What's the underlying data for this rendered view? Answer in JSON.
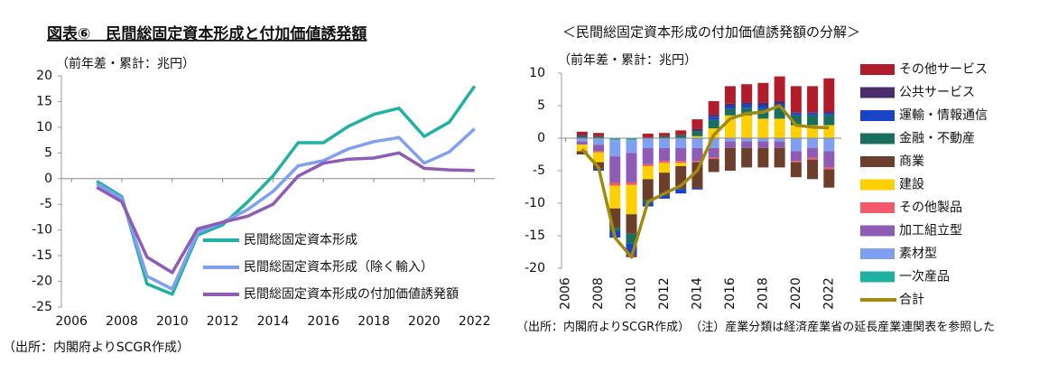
{
  "chart_data": [
    {
      "type": "line",
      "title": "図表⑥　民間総固定資本形成と付加価値誘発額",
      "subtitle": "（前年差・累計：兆円）",
      "source": "（出所：内閣府よりSCGR作成）",
      "x": [
        2007,
        2008,
        2009,
        2010,
        2011,
        2012,
        2013,
        2014,
        2015,
        2016,
        2017,
        2018,
        2019,
        2020,
        2021,
        2022
      ],
      "xlim": [
        2005.6,
        2022.8
      ],
      "xticks": [
        2006,
        2008,
        2010,
        2012,
        2014,
        2016,
        2018,
        2020,
        2022
      ],
      "ylim": [
        -25,
        20
      ],
      "yticks": [
        -25,
        -20,
        -15,
        -10,
        -5,
        0,
        5,
        10,
        15,
        20
      ],
      "series": [
        {
          "name": "民間総固定資本形成",
          "color": "#20b2a0",
          "values": [
            -0.5,
            -3.5,
            -20.5,
            -22.5,
            -11,
            -9,
            -4.5,
            0.5,
            7,
            7,
            10.2,
            12.5,
            13.7,
            8.2,
            11,
            18
          ]
        },
        {
          "name": "民間総固定資本形成（除く輸入）",
          "color": "#7fa0f0",
          "values": [
            -1,
            -3.8,
            -19,
            -21.5,
            -10.5,
            -8.5,
            -6,
            -2.5,
            2.5,
            3.5,
            5.8,
            7.2,
            8,
            3,
            5.2,
            9.7
          ]
        },
        {
          "name": "民間総固定資本形成の付加価値誘発額",
          "color": "#8e5bb5",
          "values": [
            -1.7,
            -4.5,
            -15.3,
            -18.3,
            -9.8,
            -8.5,
            -7.3,
            -5,
            0.5,
            3,
            3.8,
            4,
            5,
            2,
            1.7,
            1.6
          ]
        }
      ]
    },
    {
      "type": "stacked-bar",
      "title": "＜民間総固定資本形成の付加価値誘発額の分解＞",
      "subtitle": "（前年差・累計：兆円）",
      "source": "（出所：内閣府よりSCGR作成）",
      "note": "（注）産業分類は経済産業省の延長産業連関表を参照した",
      "x": [
        2007,
        2008,
        2009,
        2010,
        2011,
        2012,
        2013,
        2014,
        2015,
        2016,
        2017,
        2018,
        2019,
        2020,
        2021,
        2022
      ],
      "xlim": [
        2005.75,
        2022.75
      ],
      "xticks": [
        2006,
        2008,
        2010,
        2012,
        2014,
        2016,
        2018,
        2020,
        2022
      ],
      "ylim": [
        -20,
        10
      ],
      "yticks": [
        -20,
        -15,
        -10,
        -5,
        0,
        5,
        10
      ],
      "series": [
        {
          "name": "一次産品",
          "color": "#20b2a0",
          "values": [
            0,
            0,
            -0.3,
            -0.3,
            0,
            0,
            0,
            0,
            0,
            0,
            0,
            0,
            0,
            0,
            0,
            0
          ]
        },
        {
          "name": "素材型",
          "color": "#7fa0f0",
          "values": [
            -0.5,
            -1,
            -2.5,
            -2,
            -1.5,
            -1.5,
            -1.5,
            -1.5,
            -1.5,
            -0.5,
            -0.5,
            -0.5,
            -0.5,
            -2,
            -1.5,
            -2
          ]
        },
        {
          "name": "加工組立型",
          "color": "#8e5bb5",
          "values": [
            -0.5,
            -1,
            -4,
            -4.5,
            -2.5,
            -2,
            -2,
            -2,
            -1.5,
            -1,
            -1,
            -1,
            -1,
            -1.5,
            -1.5,
            -2.5
          ]
        },
        {
          "name": "その他製品",
          "color": "#f05a6a",
          "values": [
            0,
            -0.2,
            -0.5,
            -0.4,
            -0.3,
            -0.3,
            -0.3,
            -0.2,
            -0.2,
            0,
            0,
            0,
            0,
            -0.2,
            -0.3,
            -0.3
          ]
        },
        {
          "name": "建設",
          "color": "#ffd000",
          "values": [
            -1,
            -1.5,
            -3.5,
            -4.5,
            -2,
            -1.5,
            -0.5,
            0.3,
            1.5,
            3.5,
            3.5,
            3,
            3,
            2,
            2,
            2
          ]
        },
        {
          "name": "商業",
          "color": "#6b3f2a",
          "values": [
            -0.5,
            -1,
            -3,
            -3,
            -3.2,
            -3.5,
            -3.5,
            -4,
            -2,
            -3.5,
            -3,
            -3,
            -3,
            -2.3,
            -3,
            -2.8
          ]
        },
        {
          "name": "金融・不動産",
          "color": "#1a6e5e",
          "values": [
            0.3,
            0.3,
            -0.5,
            -1.5,
            -0.5,
            0.3,
            0.5,
            0.8,
            1.3,
            1,
            1.2,
            1.5,
            1.7,
            1.5,
            1.5,
            1.5
          ]
        },
        {
          "name": "運輸・情報通信",
          "color": "#1a44c8",
          "values": [
            0,
            -0.3,
            -1,
            -1.8,
            -0.5,
            -0.5,
            -0.7,
            -0.2,
            0.5,
            0.5,
            0.5,
            0.5,
            0.5,
            0.3,
            0.3,
            0.3
          ]
        },
        {
          "name": "公共サービス",
          "color": "#4a2d6b",
          "values": [
            0.2,
            0,
            0,
            0,
            0,
            0,
            0,
            0.3,
            0.3,
            0.3,
            0.3,
            0.5,
            0.5,
            0.2,
            0.2,
            0.3
          ]
        },
        {
          "name": "その他サービス",
          "color": "#b01c2a",
          "values": [
            0.5,
            0.5,
            0,
            -0.3,
            0.7,
            0.5,
            0.7,
            1.5,
            2.1,
            2.7,
            2.8,
            3,
            3.8,
            4,
            4,
            5.1
          ]
        },
        {
          "name": "合計",
          "color": "#a08a10",
          "type": "line",
          "values": [
            -1.7,
            -4.5,
            -15.3,
            -18.3,
            -9.8,
            -8.5,
            -7.3,
            -5,
            0.5,
            3,
            3.8,
            4,
            5,
            2,
            1.7,
            1.6
          ]
        }
      ]
    }
  ]
}
